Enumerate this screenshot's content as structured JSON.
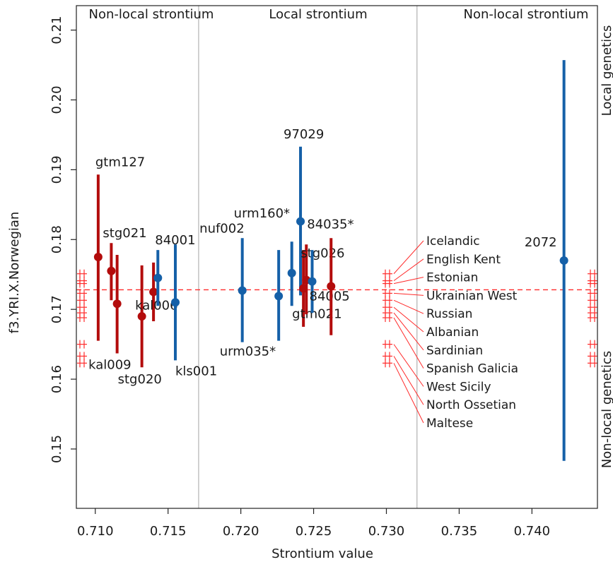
{
  "chart_data": {
    "type": "scatter",
    "title": "",
    "xlabel": "Strontium value",
    "ylabel": "f3.YRI.X.Norwegian",
    "xlim": [
      0.7087,
      0.7445
    ],
    "ylim": [
      0.1415,
      0.2135
    ],
    "x_ticks": [
      "0.710",
      "0.715",
      "0.720",
      "0.725",
      "0.730",
      "0.735",
      "0.740"
    ],
    "x_tick_values": [
      0.71,
      0.715,
      0.72,
      0.725,
      0.73,
      0.735,
      0.74
    ],
    "y_ticks": [
      "0.15",
      "0.16",
      "0.17",
      "0.18",
      "0.19",
      "0.20",
      "0.21"
    ],
    "y_tick_values": [
      0.15,
      0.16,
      0.17,
      0.18,
      0.19,
      0.2,
      0.21
    ],
    "reference_line_y": 0.1728,
    "region_boundaries": [
      0.7171,
      0.7321
    ],
    "top_labels": [
      "Non-local strontium",
      "Local strontium",
      "Non-local strontium"
    ],
    "right_labels": [
      "Local genetics",
      "Non-local genetics"
    ],
    "colors": {
      "local": "#1560a8",
      "nonlocal": "#b30c0c",
      "reference": "#ff2a2a",
      "boundary": "#bdbdbd"
    },
    "points": [
      {
        "label": "gtm127",
        "x": 0.7102,
        "y": 0.1775,
        "low": 0.1655,
        "high": 0.1893,
        "group": "nonlocal"
      },
      {
        "label": "stg021",
        "x": 0.7111,
        "y": 0.1755,
        "low": 0.1713,
        "high": 0.1795,
        "group": "nonlocal"
      },
      {
        "label": "kal009",
        "x": 0.7115,
        "y": 0.1708,
        "low": 0.1637,
        "high": 0.1778,
        "group": "nonlocal"
      },
      {
        "label": "stg020",
        "x": 0.7132,
        "y": 0.169,
        "low": 0.1617,
        "high": 0.1763,
        "group": "nonlocal"
      },
      {
        "label": "kal006",
        "x": 0.714,
        "y": 0.1725,
        "low": 0.1683,
        "high": 0.1767,
        "group": "nonlocal"
      },
      {
        "label": "84001",
        "x": 0.7143,
        "y": 0.1745,
        "low": 0.1705,
        "high": 0.1785,
        "group": "local"
      },
      {
        "label": "kls001",
        "x": 0.7155,
        "y": 0.171,
        "low": 0.1627,
        "high": 0.1793,
        "group": "local"
      },
      {
        "label": "nuf002",
        "x": 0.7201,
        "y": 0.1727,
        "low": 0.1653,
        "high": 0.1802,
        "group": "local"
      },
      {
        "label": "urm035*",
        "x": 0.7226,
        "y": 0.1719,
        "low": 0.1655,
        "high": 0.1785,
        "group": "local"
      },
      {
        "label": "urm160*",
        "x": 0.7235,
        "y": 0.1752,
        "low": 0.1705,
        "high": 0.1797,
        "group": "local"
      },
      {
        "label": "97029",
        "x": 0.7241,
        "y": 0.1826,
        "low": 0.172,
        "high": 0.1933,
        "group": "local"
      },
      {
        "label": "gtm021",
        "x": 0.7243,
        "y": 0.173,
        "low": 0.1675,
        "high": 0.1785,
        "group": "nonlocal"
      },
      {
        "label": "stg026",
        "x": 0.7245,
        "y": 0.1742,
        "low": 0.1693,
        "high": 0.1793,
        "group": "nonlocal"
      },
      {
        "label": "84005",
        "x": 0.7249,
        "y": 0.174,
        "low": 0.1695,
        "high": 0.1785,
        "group": "local"
      },
      {
        "label": "84035*",
        "x": 0.7262,
        "y": 0.1733,
        "low": 0.1663,
        "high": 0.1802,
        "group": "nonlocal"
      },
      {
        "label": "2072",
        "x": 0.7422,
        "y": 0.177,
        "low": 0.1483,
        "high": 0.2057,
        "group": "local"
      }
    ],
    "populations": [
      {
        "name": "Icelandic",
        "y": 0.1751
      },
      {
        "name": "English Kent",
        "y": 0.1741
      },
      {
        "name": "Estonian",
        "y": 0.1737
      },
      {
        "name": "Ukrainian West",
        "y": 0.1723
      },
      {
        "name": "Russian",
        "y": 0.1713
      },
      {
        "name": "Albanian",
        "y": 0.1703
      },
      {
        "name": "Sardinian",
        "y": 0.1695
      },
      {
        "name": "Spanish Galicia",
        "y": 0.1688
      },
      {
        "name": "West Sicily",
        "y": 0.165
      },
      {
        "name": "North Ossetian",
        "y": 0.1633
      },
      {
        "name": "Maltese",
        "y": 0.1623
      }
    ]
  }
}
